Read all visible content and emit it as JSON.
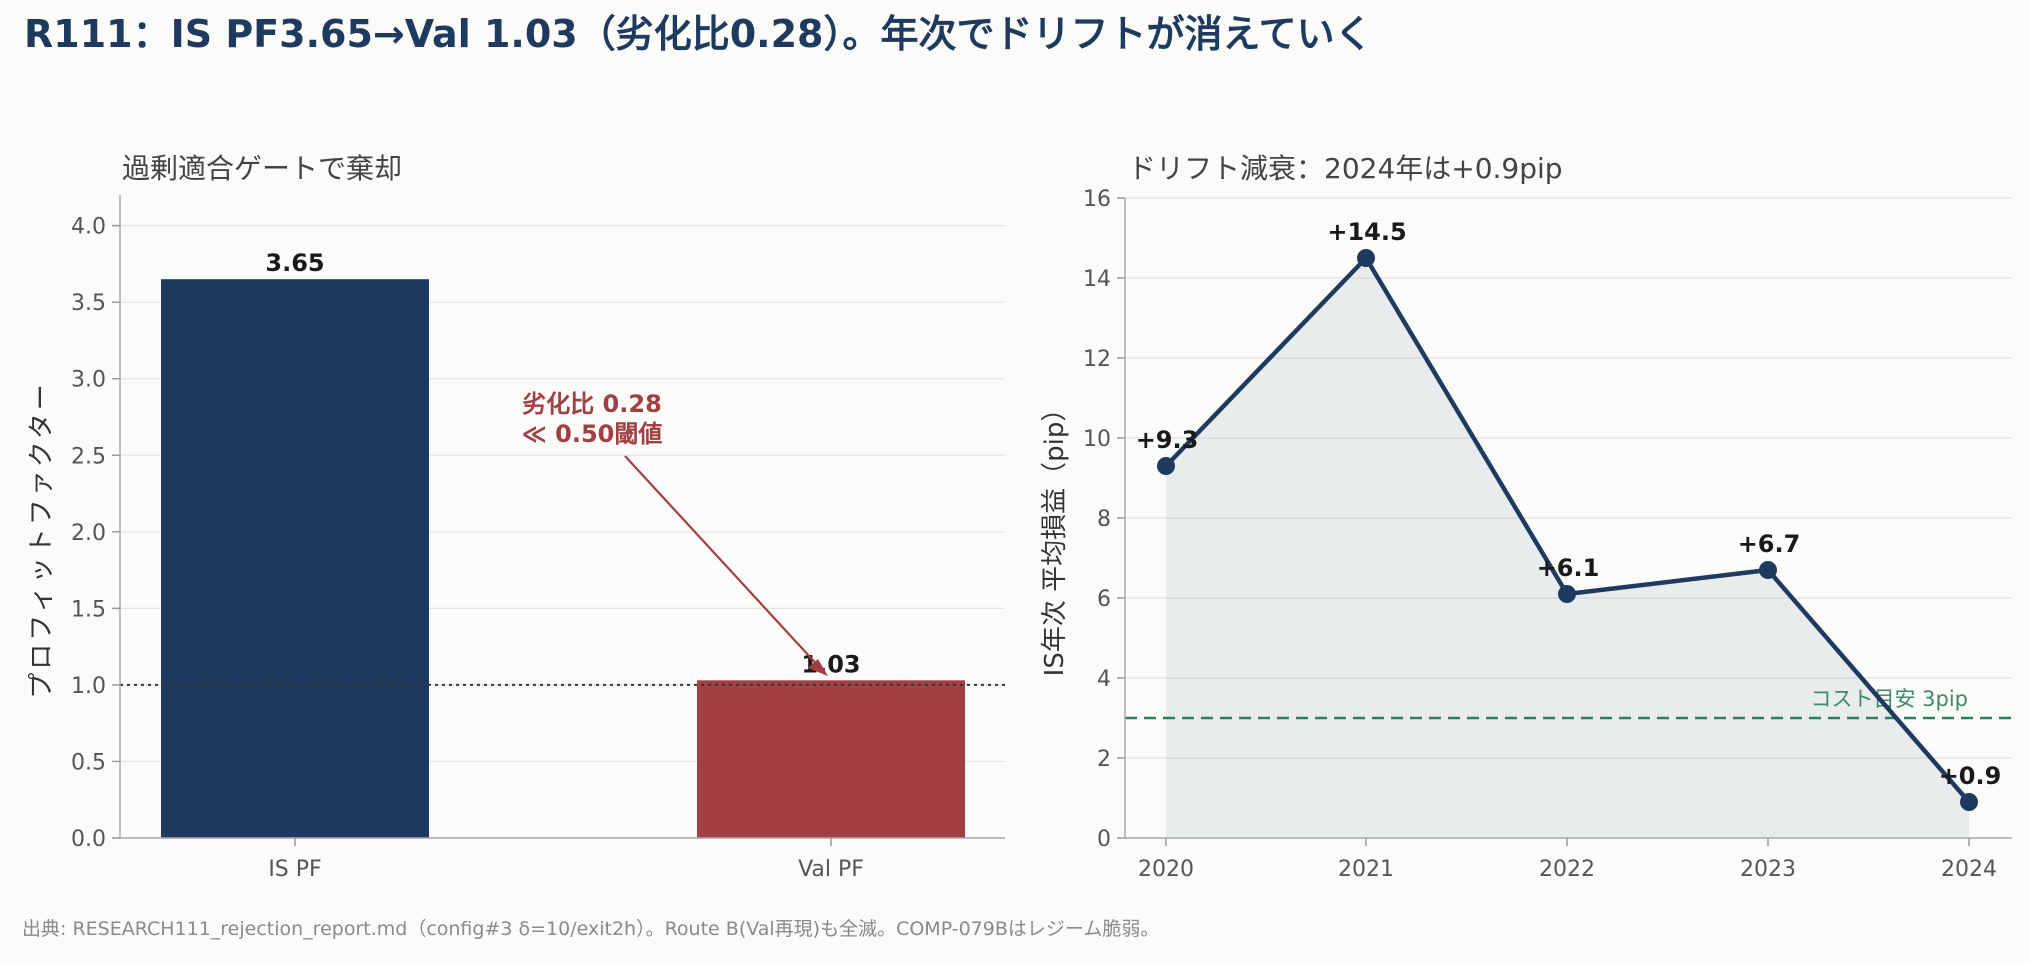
{
  "title": "R111：IS PF3.65→Val 1.03（劣化比0.28）。年次でドリフトが消えていく",
  "footer": "出典: RESEARCH111_rejection_report.md（config#3 δ=10/exit2h）。Route B(Val再現)も全滅。COMP-079Bはレジーム脆弱。",
  "colors": {
    "is": "#1f3a5f",
    "val": "#a13f42",
    "cost": "#2e7d5b",
    "line": "#1f3a5f"
  },
  "chart_data": [
    {
      "type": "bar",
      "subtitle": "過剰適合ゲートで棄却",
      "ylabel": "プロフィットファクター",
      "categories": [
        "IS PF",
        "Val PF"
      ],
      "values": [
        3.65,
        1.03
      ],
      "value_labels": [
        "3.65",
        "1.03"
      ],
      "ylim": [
        0,
        4.2
      ],
      "yticks": [
        0.0,
        0.5,
        1.0,
        1.5,
        2.0,
        2.5,
        3.0,
        3.5,
        4.0
      ],
      "ytick_labels": [
        "0.0",
        "0.5",
        "1.0",
        "1.5",
        "2.0",
        "2.5",
        "3.0",
        "3.5",
        "4.0"
      ],
      "reference_line": 1.0,
      "annotation": {
        "line1": "劣化比 0.28",
        "line2": "≪ 0.50閾値"
      },
      "grid": true
    },
    {
      "type": "line",
      "subtitle": "ドリフト減衰：2024年は+0.9pip",
      "ylabel": "IS年次 平均損益（pip）",
      "x": [
        "2020",
        "2021",
        "2022",
        "2023",
        "2024"
      ],
      "values": [
        9.3,
        14.5,
        6.1,
        6.7,
        0.9
      ],
      "value_labels": [
        "+9.3",
        "+14.5",
        "+6.1",
        "+6.7",
        "+0.9"
      ],
      "ylim": [
        0,
        16
      ],
      "yticks": [
        0,
        2,
        4,
        6,
        8,
        10,
        12,
        14,
        16
      ],
      "ytick_labels": [
        "0",
        "2",
        "4",
        "6",
        "8",
        "10",
        "12",
        "14",
        "16"
      ],
      "cost_line": {
        "value": 3,
        "label": "コスト目安 3pip"
      },
      "grid": true
    }
  ]
}
